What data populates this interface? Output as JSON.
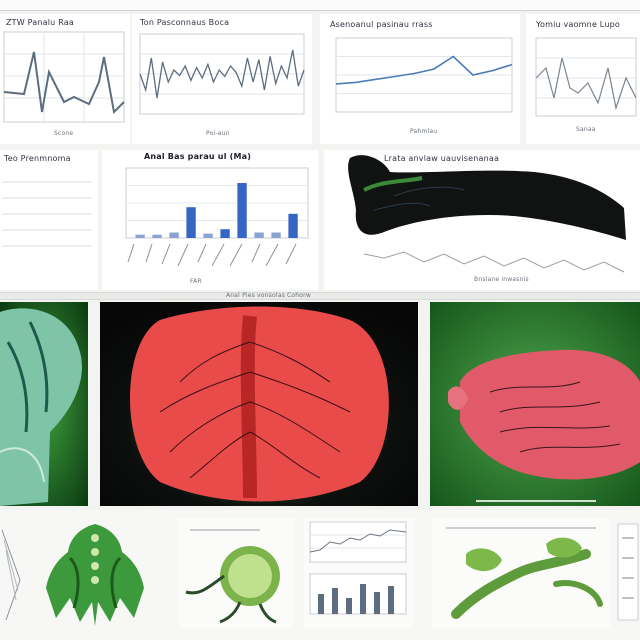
{
  "header": {
    "bar_label": "",
    "center_label": "Anal Bas parau ul (Ma)",
    "bottom_strip_label": "Anal Pies vonsolas Cohorw"
  },
  "charts": {
    "topleft": {
      "title": "ZTW Panalu Raa",
      "footer": "Scone"
    },
    "sparkline": {
      "title": "Ton Pasconnaus Boca",
      "footer": "Poi-aun"
    },
    "smooth": {
      "title": "Asenoanul pasinau rrass",
      "footer": "Pahmlau"
    },
    "right": {
      "title": "Yomiu vaomne Lupo",
      "footer": "Sanaa"
    },
    "midleft": {
      "title": "Teo Prenmnoma",
      "footer": ""
    },
    "bars": {
      "title": "Anal Bas parau ul (Ma)",
      "footer": "FAR"
    },
    "specimen": {
      "title": "Lrata anvlaw uauvisenanaa",
      "footer": "Bnslane inwasnis"
    }
  },
  "chart_data": [
    {
      "type": "bar",
      "title": "Anal Bas parau ul (Ma)",
      "categories": [
        "a",
        "b",
        "c",
        "d",
        "e",
        "f",
        "g",
        "h",
        "i",
        "j"
      ],
      "values": [
        3,
        3,
        5,
        28,
        4,
        8,
        50,
        5,
        5,
        22
      ],
      "ylim": [
        0,
        60
      ],
      "grid": true,
      "colors": [
        "#8aa4d2",
        "#8aa4d2",
        "#8aa4d2",
        "#3566c4",
        "#8aa4d2",
        "#3566c4",
        "#3566c4",
        "#8aa4d2",
        "#8aa4d2",
        "#3566c4"
      ]
    },
    {
      "type": "line",
      "title": "Asenoanul pasinau rrass",
      "x": [
        0,
        1,
        2,
        3,
        4,
        5,
        6,
        7,
        8,
        9
      ],
      "values": [
        38,
        40,
        44,
        48,
        52,
        58,
        75,
        50,
        56,
        64
      ],
      "ylim": [
        0,
        100
      ],
      "grid": true,
      "color": "#4a7db8"
    },
    {
      "type": "line",
      "title": "Ton Pasconnaus Boca",
      "x": [
        0,
        1,
        2,
        3,
        4,
        5,
        6,
        7,
        8,
        9,
        10,
        11,
        12,
        13,
        14,
        15,
        16,
        17,
        18,
        19,
        20,
        21,
        22,
        23,
        24,
        25,
        26,
        27,
        28,
        29
      ],
      "values": [
        50,
        30,
        70,
        20,
        65,
        40,
        55,
        48,
        60,
        42,
        58,
        45,
        62,
        40,
        55,
        47,
        60,
        52,
        35,
        70,
        40,
        68,
        30,
        72,
        38,
        60,
        45,
        80,
        35,
        55
      ],
      "ylim": [
        0,
        100
      ],
      "grid": true,
      "color": "#5d6d80"
    }
  ],
  "colors": {
    "bar_dark": "#3566c4",
    "bar_light": "#8aa4d2",
    "line": "#4a7db8",
    "green_bg": "#1f7a1f",
    "red_tissue": "#e94b4b",
    "mint": "#6fb59b"
  }
}
